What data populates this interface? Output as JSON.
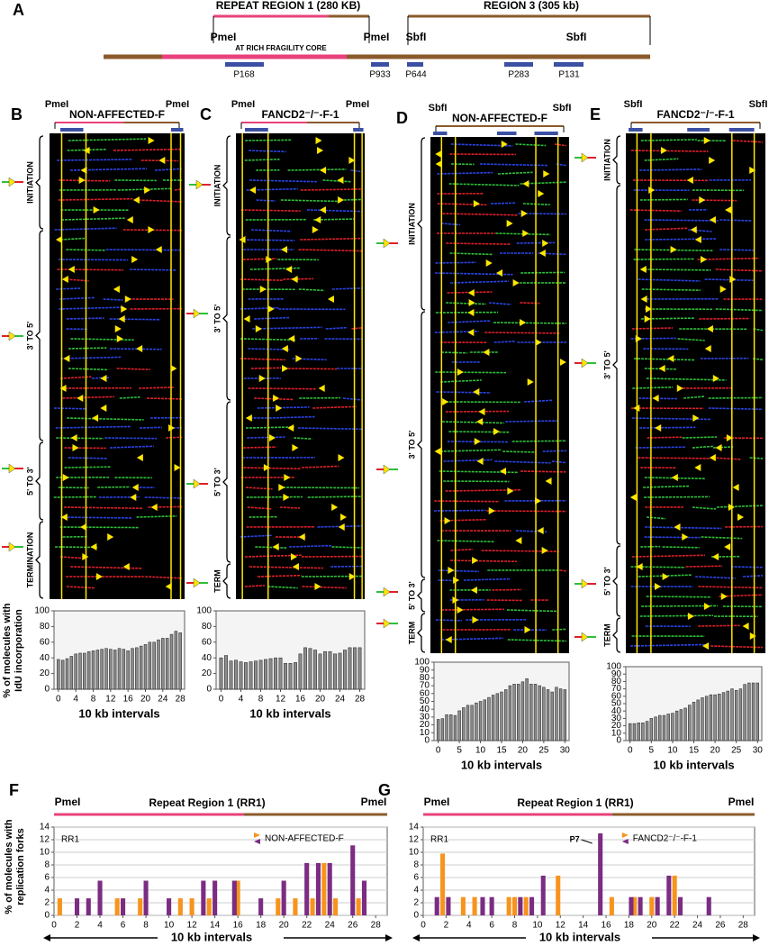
{
  "panel_a": {
    "letter": "A",
    "region1": "REPEAT REGION 1 (280 KB)",
    "region3": "REGION 3 (305 kb)",
    "sites": [
      "PmeI",
      "PmeI",
      "SbfI",
      "SbfI"
    ],
    "core": "AT RICH FRAGILITY CORE",
    "probes": [
      "P168",
      "P933",
      "P644",
      "P283",
      "P131"
    ]
  },
  "gels": [
    {
      "letter": "B",
      "sites": [
        "PmeI",
        "PmeI"
      ],
      "title": "NON-AFFECTED-F",
      "sections": [
        "INITIATION",
        "3' TO 5'",
        "5' TO 3'",
        "TERMINATION"
      ]
    },
    {
      "letter": "C",
      "sites": [
        "PmeI",
        "PmeI"
      ],
      "title": "FANCD2⁻/⁻-F-1",
      "sections": [
        "INITIATION",
        "3' TO 5'",
        "5' TO 3'",
        "TERM"
      ]
    },
    {
      "letter": "D",
      "sites": [
        "SbfI",
        "SbfI"
      ],
      "title": "NON-AFFECTED-F",
      "sections": [
        "INITIATION",
        "3' TO 5'",
        "5' TO 3'",
        "TERM"
      ]
    },
    {
      "letter": "E",
      "sites": [
        "SbfI",
        "SbfI"
      ],
      "title": "FANCD2⁻/⁻-F-1",
      "sections": [
        "INITIATION",
        "3' TO 5'",
        "5' TO 3'",
        "TERM"
      ]
    }
  ],
  "chart_data": [
    {
      "type": "bar",
      "ylabel": "% of molecules with IdU incorporation",
      "xlabel": "10 kb intervals",
      "color": "#8c8c8c",
      "x": [
        0,
        1,
        2,
        3,
        4,
        5,
        6,
        7,
        8,
        9,
        10,
        11,
        12,
        13,
        14,
        15,
        16,
        17,
        18,
        19,
        20,
        21,
        22,
        23,
        24,
        25,
        26,
        27,
        28
      ],
      "values": [
        38,
        37,
        39,
        42,
        45,
        46,
        46,
        48,
        49,
        50,
        51,
        52,
        51,
        50,
        52,
        51,
        49,
        52,
        53,
        55,
        57,
        60,
        60,
        63,
        65,
        65,
        70,
        74,
        72
      ],
      "xlim": [
        -1,
        29
      ],
      "xticks": [
        0,
        4,
        8,
        12,
        16,
        20,
        24,
        28
      ],
      "ylim": [
        0,
        100
      ],
      "yticks": [
        0,
        20,
        40,
        60,
        80,
        100
      ]
    },
    {
      "type": "bar",
      "xlabel": "10 kb intervals",
      "color": "#8c8c8c",
      "x": [
        0,
        1,
        2,
        3,
        4,
        5,
        6,
        7,
        8,
        9,
        10,
        11,
        12,
        13,
        14,
        15,
        16,
        17,
        18,
        19,
        20,
        21,
        22,
        23,
        24,
        25,
        26,
        27,
        28
      ],
      "values": [
        40,
        43,
        36,
        37,
        35,
        34,
        35,
        36,
        37,
        38,
        39,
        40,
        40,
        33,
        33,
        34,
        45,
        53,
        52,
        50,
        45,
        48,
        48,
        45,
        46,
        50,
        53,
        53,
        53
      ],
      "xlim": [
        -1,
        29
      ],
      "xticks": [
        0,
        4,
        8,
        12,
        16,
        20,
        24,
        28
      ],
      "ylim": [
        0,
        100
      ],
      "yticks": [
        0,
        20,
        40,
        60,
        80,
        100
      ]
    },
    {
      "type": "bar",
      "xlabel": "10 kb intervals",
      "color": "#8c8c8c",
      "x": [
        0,
        1,
        2,
        3,
        4,
        5,
        6,
        7,
        8,
        9,
        10,
        11,
        12,
        13,
        14,
        15,
        16,
        17,
        18,
        19,
        20,
        21,
        22,
        23,
        24,
        25,
        26,
        27,
        28,
        29,
        30
      ],
      "values": [
        27,
        28,
        33,
        33,
        32,
        38,
        42,
        45,
        45,
        48,
        50,
        52,
        55,
        58,
        60,
        62,
        65,
        70,
        72,
        72,
        75,
        79,
        72,
        72,
        70,
        68,
        65,
        62,
        68,
        66,
        65
      ],
      "xlim": [
        -1,
        31
      ],
      "xticks": [
        0,
        5,
        10,
        15,
        20,
        25,
        30
      ],
      "ylim": [
        0,
        100
      ],
      "yticks": [
        0,
        10,
        20,
        30,
        40,
        50,
        60,
        70,
        80,
        90,
        100
      ]
    },
    {
      "type": "bar",
      "xlabel": "10 kb intervals",
      "color": "#8c8c8c",
      "x": [
        0,
        1,
        2,
        3,
        4,
        5,
        6,
        7,
        8,
        9,
        10,
        11,
        12,
        13,
        14,
        15,
        16,
        17,
        18,
        19,
        20,
        21,
        22,
        23,
        24,
        25,
        26,
        27,
        28,
        29,
        30
      ],
      "values": [
        23,
        23,
        24,
        24,
        26,
        30,
        32,
        34,
        34,
        36,
        37,
        40,
        42,
        44,
        48,
        52,
        55,
        58,
        60,
        62,
        62,
        63,
        65,
        67,
        70,
        68,
        70,
        76,
        78,
        78,
        78
      ],
      "xlim": [
        -1,
        31
      ],
      "xticks": [
        0,
        5,
        10,
        15,
        20,
        25,
        30
      ],
      "ylim": [
        0,
        100
      ],
      "yticks": [
        0,
        10,
        20,
        30,
        40,
        50,
        60,
        70,
        80,
        90,
        100
      ]
    },
    {
      "type": "bar",
      "letter": "F",
      "sites": [
        "PmeI",
        "PmeI"
      ],
      "region_label": "Repeat Region 1 (RR1)",
      "inset_label": "RR1",
      "legend_label": "NON-AFFECTED-F",
      "ylabel": "% of molecules with replication forks",
      "xlabel": "10 kb intervals",
      "grid": true,
      "xlim": [
        0,
        29
      ],
      "xticks": [
        0,
        2,
        4,
        6,
        8,
        10,
        12,
        14,
        16,
        18,
        20,
        22,
        24,
        26,
        28
      ],
      "ylim": [
        0,
        14
      ],
      "yticks": [
        0,
        2,
        4,
        6,
        8,
        10,
        12,
        14
      ],
      "series": [
        {
          "color": "#f7941d",
          "x": [
            0.5,
            5.5,
            7.5,
            11,
            12,
            13.5,
            16,
            19.5,
            21,
            22.5,
            23.5,
            24.5,
            26.5
          ],
          "values": [
            2.7,
            2.7,
            2.7,
            2.7,
            2.7,
            2.7,
            5.5,
            2.7,
            2.7,
            2.7,
            8.3,
            2.7,
            2.7
          ]
        },
        {
          "color": "#7b2c83",
          "x": [
            2,
            3,
            4,
            6,
            8,
            10,
            13,
            14,
            15.7,
            18,
            20,
            22,
            23,
            24,
            26,
            27
          ],
          "values": [
            2.7,
            2.7,
            5.5,
            2.7,
            5.5,
            2.7,
            5.5,
            5.5,
            5.5,
            2.7,
            5.5,
            8.3,
            8.3,
            8.3,
            11.1,
            5.5
          ]
        }
      ]
    },
    {
      "type": "bar",
      "letter": "G",
      "sites": [
        "PmeI",
        "PmeI"
      ],
      "region_label": "Repeat Region 1 (RR1)",
      "inset_label": "RR1",
      "legend_label": "FANCD2⁻/⁻-F-1",
      "annotation": "P7",
      "xlabel": "10 kb intervals",
      "grid": true,
      "xlim": [
        0,
        29
      ],
      "xticks": [
        0,
        2,
        4,
        6,
        8,
        10,
        12,
        14,
        16,
        18,
        20,
        22,
        24,
        26,
        28
      ],
      "ylim": [
        0,
        14
      ],
      "yticks": [
        0,
        2,
        4,
        6,
        8,
        10,
        12,
        14
      ],
      "series": [
        {
          "color": "#f7941d",
          "x": [
            1.7,
            3.5,
            4.5,
            7.5,
            8,
            9,
            11.8,
            16.5,
            18.5,
            20,
            22
          ],
          "values": [
            9.8,
            2.9,
            2.9,
            2.9,
            2.9,
            2.9,
            6.3,
            2.9,
            2.9,
            2.9,
            6.3
          ]
        },
        {
          "color": "#7b2c83",
          "x": [
            1.2,
            2.2,
            5.2,
            6,
            8.5,
            9.5,
            10.5,
            15.5,
            18.2,
            19,
            20.5,
            21.5,
            22.5,
            25
          ],
          "values": [
            2.9,
            2.9,
            2.9,
            2.9,
            2.9,
            2.9,
            6.3,
            13,
            2.9,
            2.9,
            2.9,
            6.3,
            2.9,
            2.9
          ]
        }
      ]
    }
  ]
}
